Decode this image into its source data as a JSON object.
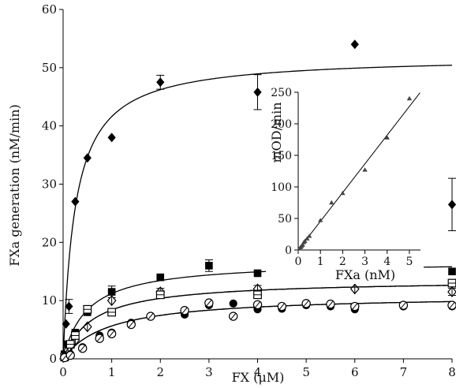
{
  "chart_data": [
    {
      "type": "scatter",
      "xlabel": "FX (μM)",
      "ylabel": "FXa generation (nM/min)",
      "xlim": [
        0,
        8
      ],
      "ylim": [
        0,
        60
      ],
      "xticks": [
        0,
        1,
        2,
        3,
        4,
        5,
        6,
        7,
        8
      ],
      "yticks": [
        0,
        10,
        20,
        30,
        40,
        50,
        60
      ],
      "grid": false,
      "series": [
        {
          "marker": "filled-diamond",
          "points": [
            [
              0.03,
              0.5
            ],
            [
              0.06,
              6
            ],
            [
              0.12,
              9
            ],
            [
              0.25,
              27
            ],
            [
              0.5,
              34.5
            ],
            [
              1,
              38
            ],
            [
              2,
              47.5
            ],
            [
              4,
              45.8
            ],
            [
              6,
              54
            ],
            [
              8,
              26.5
            ]
          ],
          "errors": [
            [
              0.12,
              1.2
            ],
            [
              2,
              1.2
            ],
            [
              4,
              3
            ],
            [
              8,
              4.5
            ]
          ],
          "fit": {
            "vmax": 52,
            "km": 0.25
          }
        },
        {
          "marker": "filled-square",
          "points": [
            [
              0.03,
              0.8
            ],
            [
              0.1,
              2.5
            ],
            [
              0.25,
              4.5
            ],
            [
              0.5,
              8
            ],
            [
              1,
              11.5
            ],
            [
              2,
              14
            ],
            [
              3,
              16
            ],
            [
              4,
              14.7
            ],
            [
              5,
              15
            ],
            [
              6,
              16
            ],
            [
              7,
              15
            ],
            [
              8,
              15
            ]
          ],
          "errors": [
            [
              1,
              1
            ],
            [
              3,
              1
            ],
            [
              5,
              1
            ],
            [
              6,
              0.7
            ]
          ],
          "fit": {
            "vmax": 16.8,
            "km": 0.5
          }
        },
        {
          "marker": "open-diamond",
          "points": [
            [
              0.03,
              0.4
            ],
            [
              0.1,
              1.5
            ],
            [
              0.25,
              3.2
            ],
            [
              0.5,
              5.5
            ],
            [
              1,
              10
            ],
            [
              2,
              11.5
            ],
            [
              4,
              12
            ],
            [
              6,
              12
            ],
            [
              8,
              11.5
            ]
          ],
          "errors": [
            [
              2,
              0.6
            ],
            [
              4,
              0.6
            ],
            [
              8,
              0.6
            ]
          ],
          "fit": {
            "vmax": 13.6,
            "km": 0.62
          }
        },
        {
          "marker": "open-square",
          "points": [
            [
              0.03,
              0.3
            ],
            [
              0.15,
              2.5
            ],
            [
              0.25,
              4
            ],
            [
              0.5,
              8.5
            ],
            [
              1,
              8
            ],
            [
              2,
              11
            ],
            [
              4,
              11
            ],
            [
              8,
              13
            ]
          ],
          "errors": [
            [
              2,
              0.6
            ],
            [
              4,
              0.6
            ],
            [
              8,
              0.6
            ]
          ],
          "fit": {
            "vmax": 13.6,
            "km": 0.62
          }
        },
        {
          "marker": "filled-circle",
          "points": [
            [
              0.03,
              0.2
            ],
            [
              0.15,
              0.8
            ],
            [
              0.4,
              2
            ],
            [
              0.75,
              4
            ],
            [
              1,
              4.5
            ],
            [
              1.4,
              6.2
            ],
            [
              1.8,
              7.3
            ],
            [
              2.5,
              7.6
            ],
            [
              3,
              9.2
            ],
            [
              3.5,
              9.5
            ],
            [
              4,
              8.5
            ],
            [
              4.5,
              8.6
            ],
            [
              5,
              9.2
            ],
            [
              5.5,
              9
            ],
            [
              6,
              8.5
            ],
            [
              7,
              9
            ],
            [
              8,
              9
            ]
          ],
          "errors": [],
          "fit": {
            "vmax": 11,
            "km": 0.95
          }
        },
        {
          "marker": "open-circle",
          "points": [
            [
              0.03,
              0.2
            ],
            [
              0.15,
              0.6
            ],
            [
              0.4,
              1.8
            ],
            [
              0.75,
              3.5
            ],
            [
              1,
              4.3
            ],
            [
              1.4,
              5.9
            ],
            [
              1.8,
              7.3
            ],
            [
              2.5,
              8.3
            ],
            [
              3,
              9.6
            ],
            [
              3.5,
              7.3
            ],
            [
              4,
              9.3
            ],
            [
              4.5,
              9
            ],
            [
              5,
              9.5
            ],
            [
              5.5,
              9.4
            ],
            [
              6,
              9
            ],
            [
              7,
              9.2
            ],
            [
              8,
              9.2
            ]
          ],
          "errors": [],
          "fit": {
            "vmax": 11,
            "km": 0.95
          }
        }
      ]
    },
    {
      "type": "scatter",
      "xlabel": "FXa (nM)",
      "ylabel": "mOD/min",
      "xlim": [
        0,
        5.5
      ],
      "ylim": [
        0,
        250
      ],
      "xticks": [
        0,
        1,
        2,
        3,
        4,
        5
      ],
      "yticks": [
        0,
        50,
        100,
        150,
        200,
        250
      ],
      "grid": false,
      "series": [
        {
          "marker": "filled-triangle",
          "points": [
            [
              0.05,
              2
            ],
            [
              0.1,
              4
            ],
            [
              0.15,
              6
            ],
            [
              0.2,
              8
            ],
            [
              0.25,
              12
            ],
            [
              0.3,
              14
            ],
            [
              0.4,
              18
            ],
            [
              0.5,
              22
            ],
            [
              1,
              47
            ],
            [
              1.5,
              75
            ],
            [
              2,
              90
            ],
            [
              3,
              127
            ],
            [
              4,
              178
            ],
            [
              5,
              240
            ]
          ],
          "fit": {
            "slope": 45.5,
            "intercept": 0
          }
        }
      ]
    }
  ]
}
